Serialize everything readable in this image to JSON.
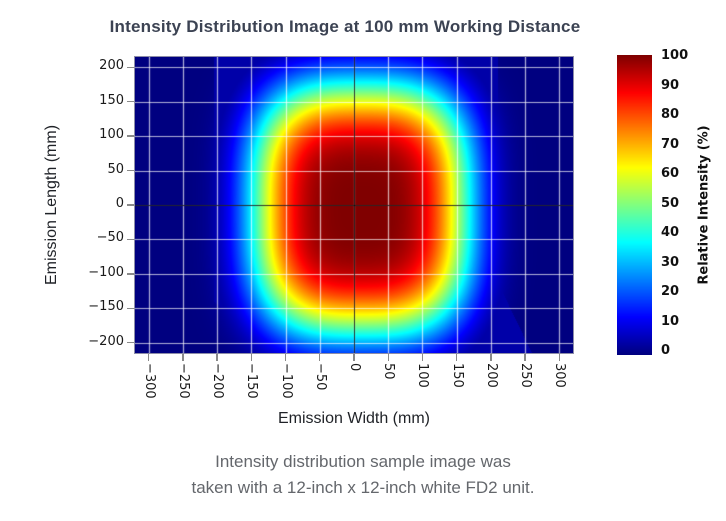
{
  "title": "Intensity Distribution Image at 100 mm Working Distance",
  "caption": {
    "line1": "Intensity distribution sample image was",
    "line2": "taken with a 12-inch x 12-inch white FD2 unit."
  },
  "colors": {
    "page_background": "#ffffff",
    "title_text": "#3c4353",
    "caption_text": "#64676c",
    "axis_text": "#1a1a1a",
    "grid_line": "rgba(255,255,255,0.7)",
    "crosshair_line": "rgba(0,0,0,0.8)",
    "plot_border": "#8d8da8",
    "tick_mark": "#8a8a8a",
    "heatmap_low": "#000080",
    "heatmap_high": "#800000"
  },
  "chart_data": {
    "type": "heatmap",
    "title": "Intensity Distribution Image at 100 mm Working Distance",
    "xlabel": "Emission Width (mm)",
    "ylabel": "Emission Length (mm)",
    "xlim": [
      -320,
      320
    ],
    "ylim": [
      -215,
      215
    ],
    "x_ticks": [
      -300,
      -250,
      -200,
      -150,
      -100,
      -50,
      0,
      50,
      100,
      150,
      200,
      250,
      300
    ],
    "x_tick_labels": [
      "−300",
      "−250",
      "−200",
      "−150",
      "−100",
      "−50",
      "0",
      "50",
      "100",
      "150",
      "200",
      "250",
      "300"
    ],
    "y_ticks": [
      200,
      150,
      100,
      50,
      0,
      -50,
      -100,
      -150,
      -200
    ],
    "y_tick_labels": [
      "200",
      "150",
      "100",
      "50",
      "0",
      "−50",
      "−100",
      "−150",
      "−200"
    ],
    "grid": {
      "show": true,
      "spacing_mm": 50
    },
    "crosshair": {
      "x": 0,
      "y": 0
    },
    "colormap": "jet",
    "colorbar": {
      "label": "Relative Intensity (%)",
      "min": 0,
      "max": 100,
      "ticks": [
        100,
        90,
        80,
        70,
        60,
        50,
        40,
        30,
        20,
        10,
        0
      ],
      "tick_labels": [
        "100",
        "90",
        "80",
        "70",
        "60",
        "50",
        "40",
        "30",
        "20",
        "10",
        "0"
      ]
    },
    "distribution": {
      "model": "flat-top super-Gaussian: I = peak * exp(-(((|x-cx|/hwx)^k + (|y-cy|/hwy)^k)^(1/k))^m)",
      "peak_percent": 100,
      "center_mm": {
        "x": 10,
        "y": -6
      },
      "half_width_mm": {
        "x": 160,
        "y": 185
      },
      "shape_exponent_k": 3,
      "profile_exponent_m": 4,
      "background_percent": 0,
      "sensor_plateau_percent": 4,
      "sensor_plateau_polygon_mm": [
        [
          -205,
          215
        ],
        [
          210,
          215
        ],
        [
          210,
          -112
        ],
        [
          260,
          -215
        ],
        [
          -115,
          -215
        ],
        [
          -205,
          -140
        ]
      ]
    }
  }
}
